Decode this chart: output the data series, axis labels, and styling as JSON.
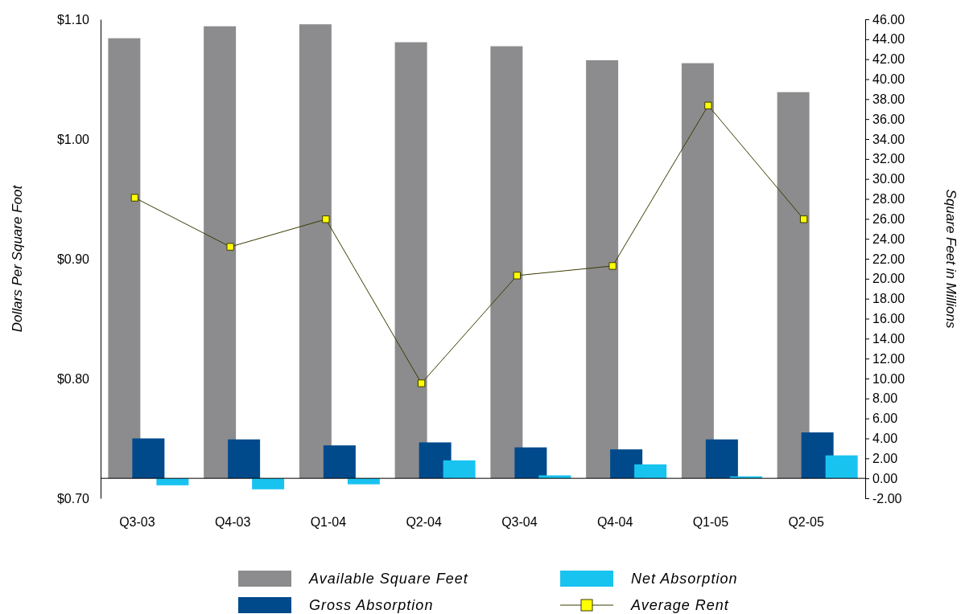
{
  "chart_data": {
    "type": "bar",
    "categories": [
      "Q3-03",
      "Q4-03",
      "Q1-04",
      "Q2-04",
      "Q3-04",
      "Q4-04",
      "Q1-05",
      "Q2-05"
    ],
    "series": [
      {
        "name": "Available Square Feet",
        "axis": "y2",
        "color": "#8c8c8e",
        "values": [
          44.1,
          45.3,
          45.5,
          43.7,
          43.3,
          41.9,
          41.6,
          38.7
        ]
      },
      {
        "name": "Gross Absorption",
        "axis": "y2",
        "color": "#004a8c",
        "values": [
          4.0,
          3.9,
          3.3,
          3.6,
          3.1,
          2.9,
          3.9,
          4.6
        ]
      },
      {
        "name": "Net Absorption",
        "axis": "y2",
        "color": "#19c3f0",
        "values": [
          -0.7,
          -1.1,
          -0.6,
          1.8,
          0.3,
          1.4,
          0.2,
          2.3
        ]
      },
      {
        "name": "Average Rent",
        "type": "line",
        "color": "#3a3a00",
        "marker": "square",
        "values": [
          0.951,
          0.91,
          0.933,
          0.796,
          0.886,
          0.894,
          1.028,
          0.933
        ]
      }
    ],
    "ylabel": "Dollars Per Square Foot",
    "y2label": "Square Feet in Millions",
    "ylim": [
      0.7,
      1.1
    ],
    "yticks": [
      {
        "value": 0.7,
        "label": "$0.70"
      },
      {
        "value": 0.8,
        "label": "$0.80"
      },
      {
        "value": 0.9,
        "label": "$0.90"
      },
      {
        "value": 1.0,
        "label": "$1.00"
      },
      {
        "value": 1.1,
        "label": "$1.10"
      }
    ],
    "y2lim": [
      -2,
      46
    ],
    "y2ticks": [
      {
        "value": -2,
        "label": "-2.00"
      },
      {
        "value": 0,
        "label": "0.00"
      },
      {
        "value": 2,
        "label": "2.00"
      },
      {
        "value": 4,
        "label": "4.00"
      },
      {
        "value": 6,
        "label": "6.00"
      },
      {
        "value": 8,
        "label": "8.00"
      },
      {
        "value": 10,
        "label": "10.00"
      },
      {
        "value": 12,
        "label": "12.00"
      },
      {
        "value": 14,
        "label": "14.00"
      },
      {
        "value": 16,
        "label": "16.00"
      },
      {
        "value": 18,
        "label": "18.00"
      },
      {
        "value": 20,
        "label": "20.00"
      },
      {
        "value": 22,
        "label": "22.00"
      },
      {
        "value": 24,
        "label": "24.00"
      },
      {
        "value": 26,
        "label": "26.00"
      },
      {
        "value": 28,
        "label": "28.00"
      },
      {
        "value": 30,
        "label": "30.00"
      },
      {
        "value": 32,
        "label": "32.00"
      },
      {
        "value": 34,
        "label": "34.00"
      },
      {
        "value": 36,
        "label": "36.00"
      },
      {
        "value": 38,
        "label": "38.00"
      },
      {
        "value": 40,
        "label": "40.00"
      },
      {
        "value": 42,
        "label": "42.00"
      },
      {
        "value": 44,
        "label": "44.00"
      },
      {
        "value": 46,
        "label": "46.00"
      }
    ],
    "legend": "bottom"
  }
}
